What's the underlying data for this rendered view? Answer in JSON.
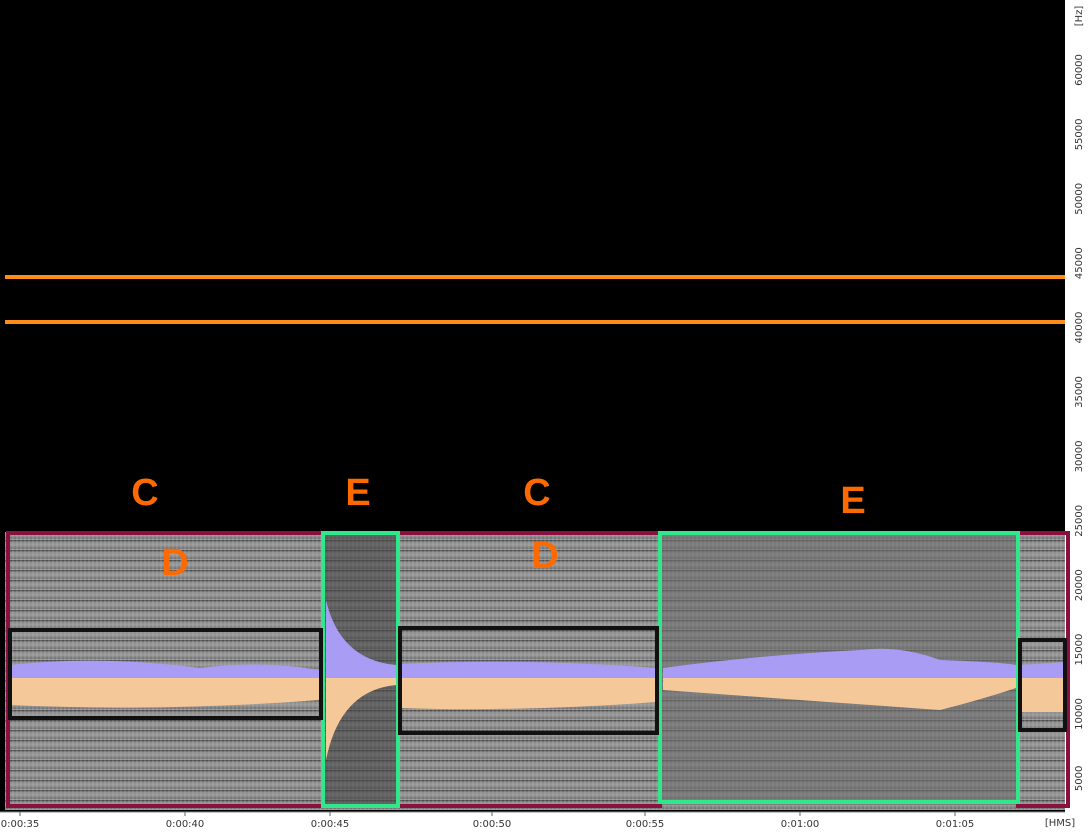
{
  "axes": {
    "y_unit": "[Hz]",
    "y_ticks": [
      60000,
      55000,
      50000,
      45000,
      40000,
      35000,
      30000,
      25000,
      20000,
      15000,
      10000,
      5000
    ],
    "x_unit": "[HMS]",
    "x_ticks": [
      "0:00:35",
      "0:00:40",
      "0:00:45",
      "0:00:50",
      "0:00:55",
      "0:01:00",
      "0:01:05"
    ]
  },
  "annotations": [
    "C",
    "E",
    "C",
    "E",
    "D",
    "D"
  ]
}
